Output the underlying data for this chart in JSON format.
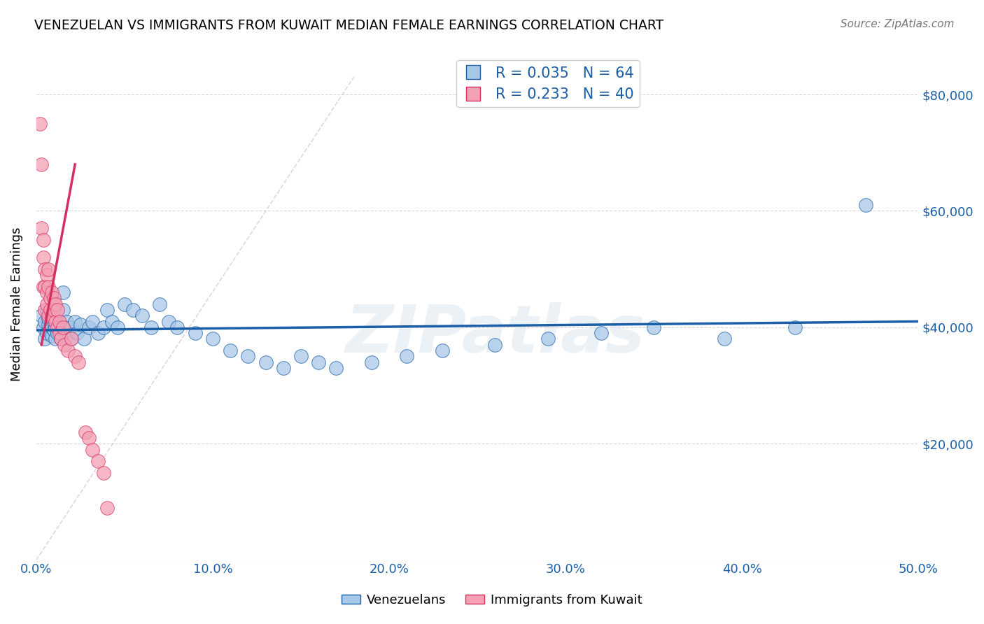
{
  "title": "VENEZUELAN VS IMMIGRANTS FROM KUWAIT MEDIAN FEMALE EARNINGS CORRELATION CHART",
  "source": "Source: ZipAtlas.com",
  "ylabel": "Median Female Earnings",
  "xlim": [
    0.0,
    0.5
  ],
  "ylim": [
    0,
    88000
  ],
  "yticks": [
    0,
    20000,
    40000,
    60000,
    80000
  ],
  "ytick_labels": [
    "",
    "$20,000",
    "$40,000",
    "$60,000",
    "$80,000"
  ],
  "xticks": [
    0.0,
    0.1,
    0.2,
    0.3,
    0.4,
    0.5
  ],
  "xtick_labels": [
    "0.0%",
    "10.0%",
    "20.0%",
    "30.0%",
    "40.0%",
    "50.0%"
  ],
  "blue_color": "#a8c8e8",
  "pink_color": "#f4a0b5",
  "trend_blue": "#1a5fa8",
  "trend_pink": "#d43060",
  "watermark": "ZIPatlas",
  "venezuelans_x": [
    0.003,
    0.004,
    0.005,
    0.005,
    0.006,
    0.006,
    0.007,
    0.007,
    0.008,
    0.008,
    0.009,
    0.009,
    0.01,
    0.01,
    0.011,
    0.011,
    0.012,
    0.012,
    0.013,
    0.014,
    0.015,
    0.015,
    0.016,
    0.017,
    0.018,
    0.019,
    0.02,
    0.022,
    0.023,
    0.025,
    0.027,
    0.03,
    0.032,
    0.035,
    0.038,
    0.04,
    0.043,
    0.046,
    0.05,
    0.055,
    0.06,
    0.065,
    0.07,
    0.075,
    0.08,
    0.09,
    0.1,
    0.11,
    0.12,
    0.13,
    0.14,
    0.15,
    0.16,
    0.17,
    0.19,
    0.21,
    0.23,
    0.26,
    0.29,
    0.32,
    0.35,
    0.39,
    0.43,
    0.47
  ],
  "venezuelans_y": [
    42000,
    40000,
    41000,
    38000,
    43000,
    39000,
    40500,
    41500,
    39000,
    42000,
    38500,
    40000,
    41000,
    39500,
    40000,
    38000,
    41000,
    39000,
    40000,
    38000,
    46000,
    43000,
    40000,
    41000,
    39500,
    40000,
    38000,
    41000,
    39000,
    40500,
    38000,
    40000,
    41000,
    39000,
    40000,
    43000,
    41000,
    40000,
    44000,
    43000,
    42000,
    40000,
    44000,
    41000,
    40000,
    39000,
    38000,
    36000,
    35000,
    34000,
    33000,
    35000,
    34000,
    33000,
    34000,
    35000,
    36000,
    37000,
    38000,
    39000,
    40000,
    38000,
    40000,
    61000
  ],
  "kuwait_x": [
    0.002,
    0.003,
    0.003,
    0.004,
    0.004,
    0.004,
    0.005,
    0.005,
    0.005,
    0.006,
    0.006,
    0.006,
    0.007,
    0.007,
    0.007,
    0.008,
    0.008,
    0.009,
    0.009,
    0.01,
    0.01,
    0.011,
    0.011,
    0.012,
    0.012,
    0.013,
    0.013,
    0.014,
    0.015,
    0.016,
    0.018,
    0.02,
    0.022,
    0.024,
    0.028,
    0.03,
    0.032,
    0.035,
    0.038,
    0.04
  ],
  "kuwait_y": [
    75000,
    68000,
    57000,
    52000,
    47000,
    55000,
    50000,
    47000,
    43000,
    49000,
    46000,
    44000,
    50000,
    47000,
    42000,
    45000,
    43000,
    46000,
    42000,
    45000,
    43000,
    44000,
    41000,
    43000,
    40000,
    41000,
    39000,
    38000,
    40000,
    37000,
    36000,
    38000,
    35000,
    34000,
    22000,
    21000,
    19000,
    17000,
    15000,
    9000
  ],
  "blue_R": 0.035,
  "pink_R": 0.233,
  "blue_N": 64,
  "pink_N": 40,
  "blue_trend_x": [
    0.0,
    0.5
  ],
  "blue_trend_y": [
    39500,
    41000
  ],
  "pink_trend_x_start": 0.003,
  "pink_trend_x_end": 0.022,
  "ref_line_x": [
    0.0,
    0.18
  ],
  "ref_line_y": [
    0,
    83000
  ]
}
